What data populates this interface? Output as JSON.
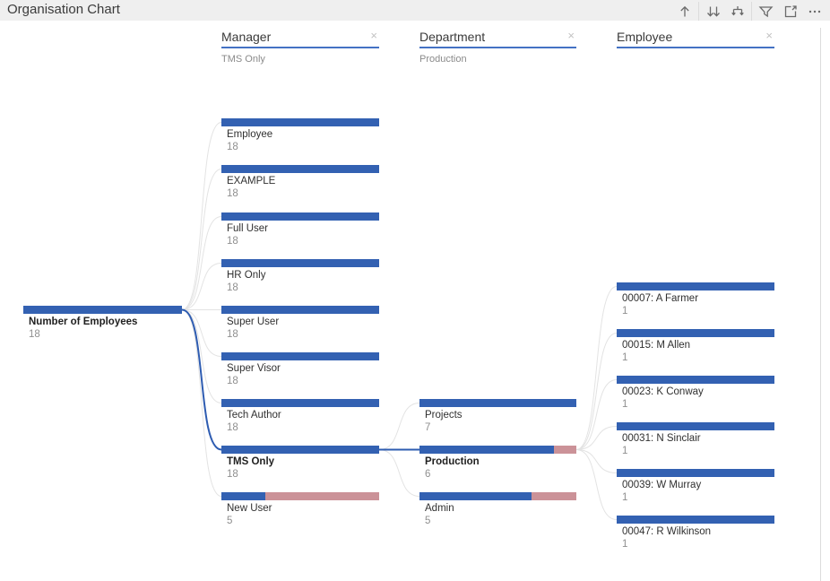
{
  "title": "Organisation Chart",
  "toolbar": {
    "icons": [
      {
        "name": "drill-up",
        "glyph": "arrow-up"
      },
      {
        "name": "expand-next-level",
        "glyph": "double-arrow-down"
      },
      {
        "name": "expand-all",
        "glyph": "branch-down"
      },
      {
        "name": "filter",
        "glyph": "funnel"
      },
      {
        "name": "focus-mode",
        "glyph": "expand-square"
      },
      {
        "name": "more-options",
        "glyph": "ellipsis"
      }
    ]
  },
  "colors": {
    "bar_fill": "#3361b2",
    "bar_rest": "#cb9298",
    "link": "#e3e3e3",
    "link_selected": "#2e5cb1",
    "underline": "#4472c4"
  },
  "headers": [
    {
      "id": "manager",
      "label": "Manager",
      "selected_value": "TMS Only",
      "close": "×"
    },
    {
      "id": "department",
      "label": "Department",
      "selected_value": "Production",
      "close": "×"
    },
    {
      "id": "employee",
      "label": "Employee",
      "selected_value": "",
      "close": "×"
    }
  ],
  "chart_data": {
    "type": "decomposition-tree",
    "measure": "Number of Employees",
    "root": {
      "label": "Number of Employees",
      "value": 18,
      "bold": true
    },
    "levels": [
      {
        "field": "Manager",
        "max": 18,
        "selected": "TMS Only",
        "nodes": [
          {
            "label": "Employee",
            "value": 18
          },
          {
            "label": "EXAMPLE",
            "value": 18
          },
          {
            "label": "Full User",
            "value": 18
          },
          {
            "label": "HR Only",
            "value": 18
          },
          {
            "label": "Super User",
            "value": 18
          },
          {
            "label": "Super Visor",
            "value": 18
          },
          {
            "label": "Tech Author",
            "value": 18
          },
          {
            "label": "TMS Only",
            "value": 18,
            "selected": true
          },
          {
            "label": "New User",
            "value": 5
          }
        ]
      },
      {
        "field": "Department",
        "max": 7,
        "selected": "Production",
        "parent": "TMS Only",
        "nodes": [
          {
            "label": "Projects",
            "value": 7
          },
          {
            "label": "Production",
            "value": 6,
            "selected": true
          },
          {
            "label": "Admin",
            "value": 5
          }
        ]
      },
      {
        "field": "Employee",
        "max": 1,
        "selected": null,
        "parent": "Production",
        "nodes": [
          {
            "label": "00007: A Farmer",
            "value": 1
          },
          {
            "label": "00015: M Allen",
            "value": 1
          },
          {
            "label": "00023: K Conway",
            "value": 1
          },
          {
            "label": "00031: N Sinclair",
            "value": 1
          },
          {
            "label": "00039: W Murray",
            "value": 1
          },
          {
            "label": "00047: R Wilkinson",
            "value": 1
          }
        ]
      }
    ]
  }
}
